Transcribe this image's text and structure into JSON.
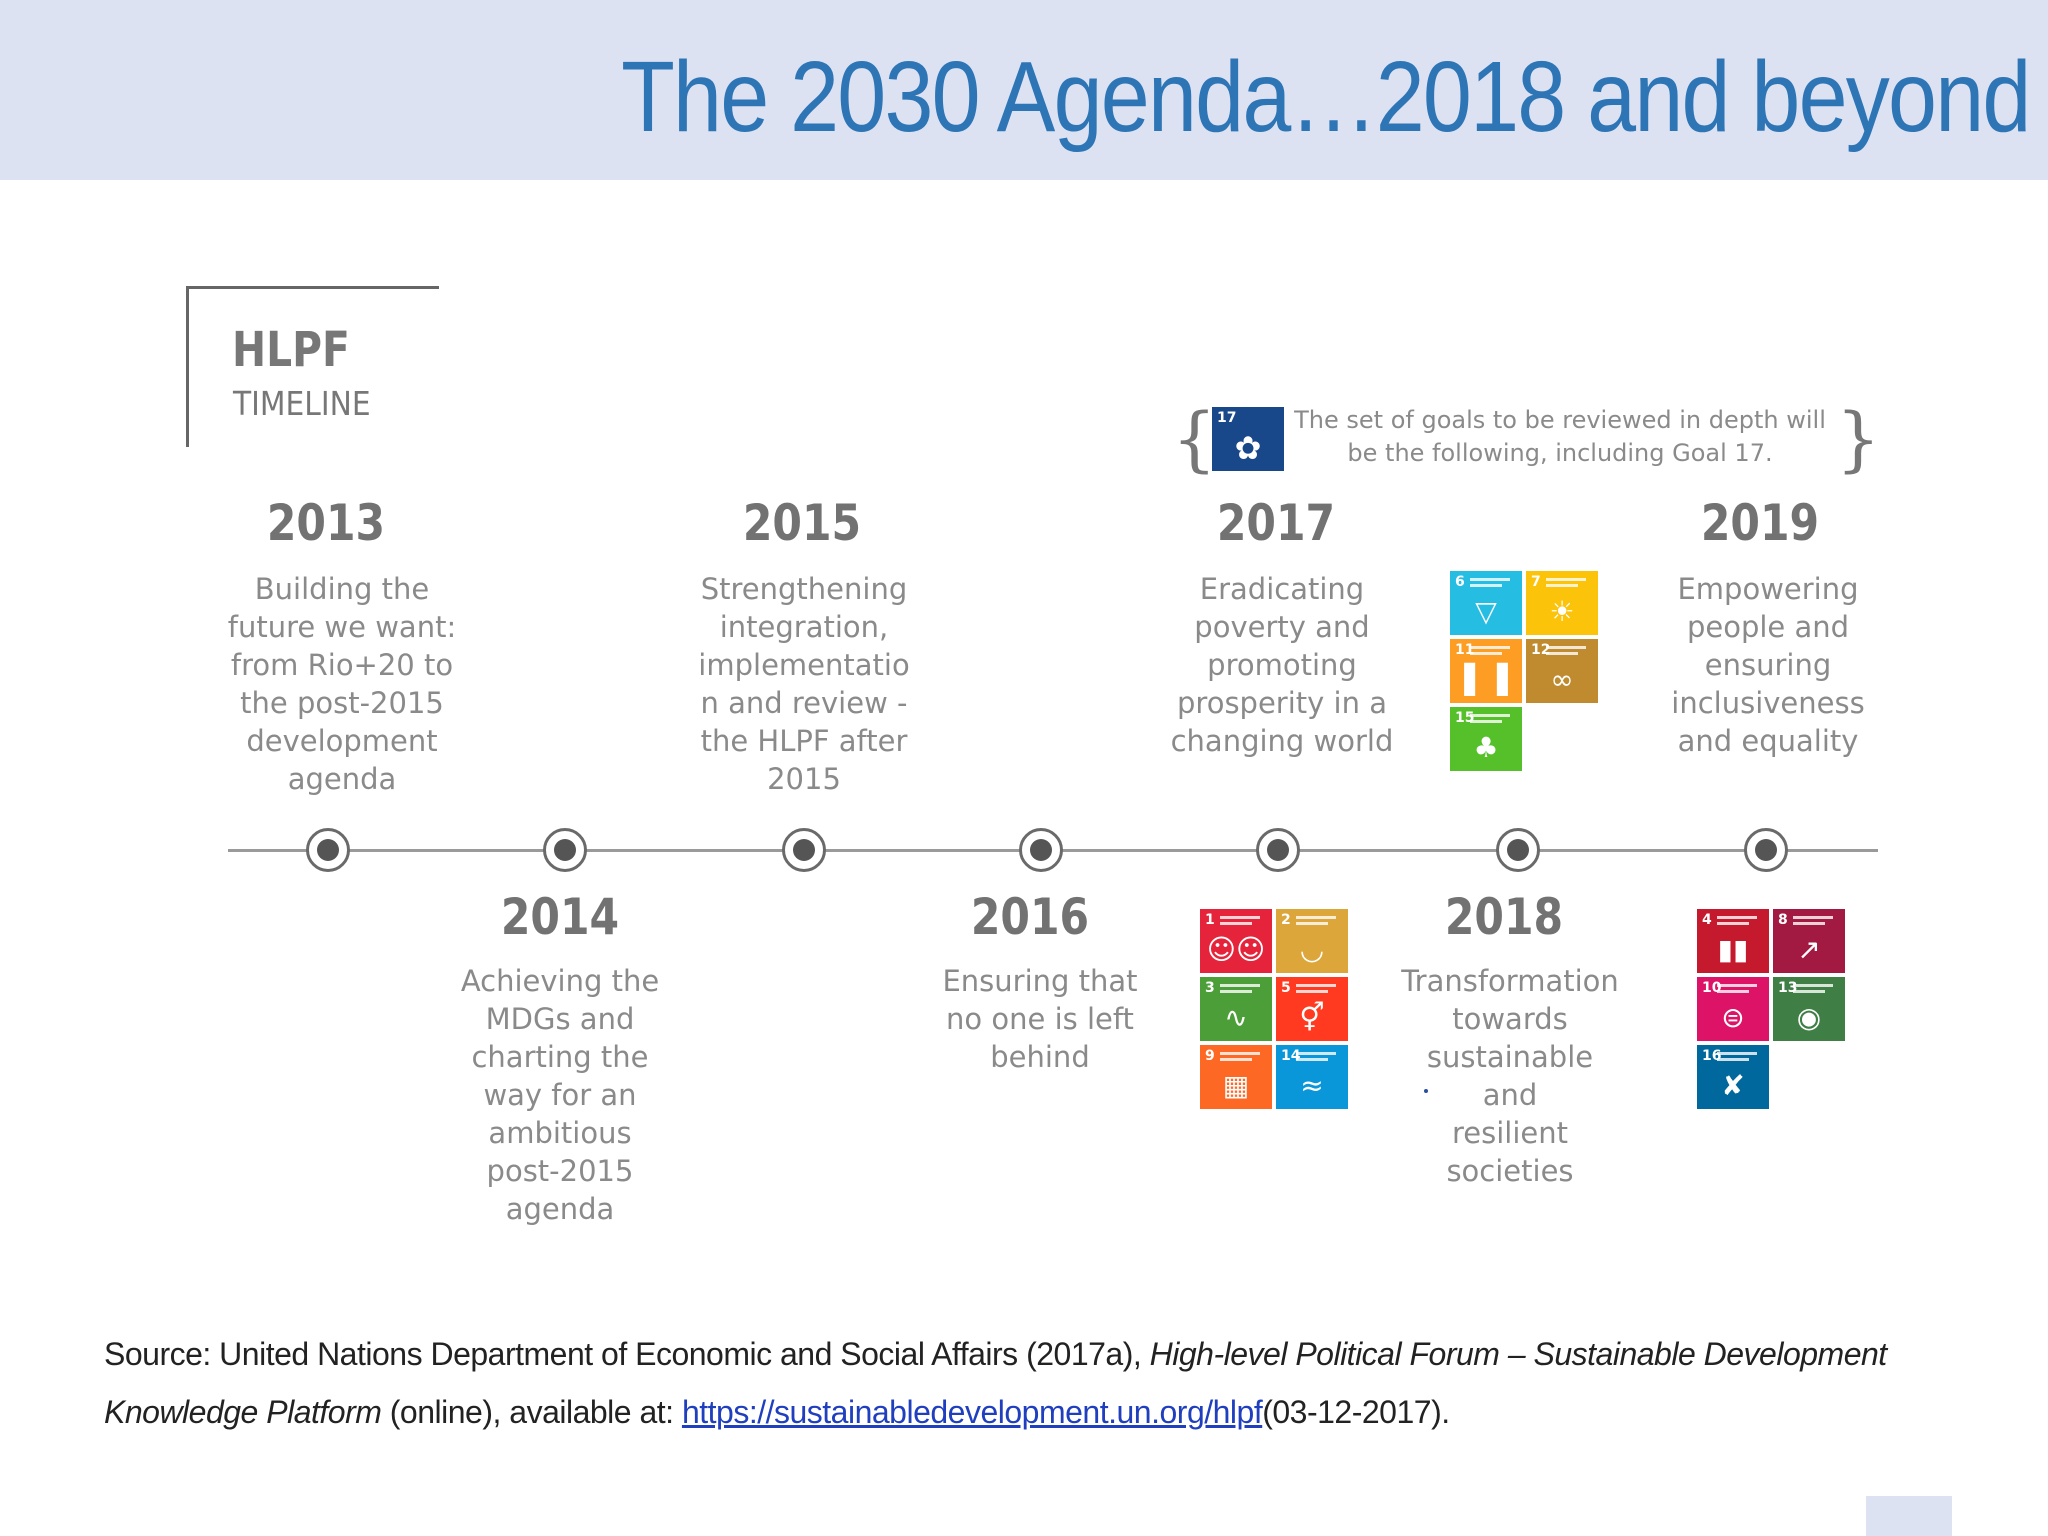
{
  "title": "The 2030 Agenda…2018 and beyond",
  "hlpf": {
    "title": "HLPF",
    "subtitle": "TIMELINE"
  },
  "note": {
    "text": "The set of goals to be reviewed in depth will be the following, including Goal 17."
  },
  "milestones": [
    {
      "year": "2013",
      "text": "Building the\nfuture we want:\nfrom Rio+20 to\nthe post-2015\ndevelopment\nagenda"
    },
    {
      "year": "2014",
      "text": "Achieving the\nMDGs and\ncharting the\nway for an\nambitious\npost-2015\nagenda"
    },
    {
      "year": "2015",
      "text": "Strengthening\nintegration,\nimplementatio\nn and review -\nthe HLPF after\n2015"
    },
    {
      "year": "2016",
      "text": "Ensuring that\nno one is left\nbehind"
    },
    {
      "year": "2017",
      "text": "Eradicating\npoverty and\npromoting\nprosperity in a\nchanging world"
    },
    {
      "year": "2018",
      "text": "Transformation\ntowards\nsustainable and\nresilient\nsocieties"
    },
    {
      "year": "2019",
      "text": "Empowering\npeople and\nensuring\ninclusiveness\nand equality"
    }
  ],
  "goal_tiles": {
    "goal17": {
      "num": "17",
      "color": "#19488a"
    },
    "set2017": [
      {
        "num": "1",
        "color": "#e5243b",
        "icon": "people-icon"
      },
      {
        "num": "2",
        "color": "#dda63a",
        "icon": "bowl-icon"
      },
      {
        "num": "3",
        "color": "#4c9f38",
        "icon": "heartbeat-icon"
      },
      {
        "num": "5",
        "color": "#ff3a21",
        "icon": "gender-icon"
      },
      {
        "num": "9",
        "color": "#fd6925",
        "icon": "cubes-icon"
      },
      {
        "num": "14",
        "color": "#0a97d9",
        "icon": "fish-icon"
      }
    ],
    "set2018": [
      {
        "num": "6",
        "color": "#26bde2",
        "icon": "water-icon"
      },
      {
        "num": "7",
        "color": "#fcc30b",
        "icon": "sun-icon"
      },
      {
        "num": "11",
        "color": "#fd9d24",
        "icon": "city-icon"
      },
      {
        "num": "12",
        "color": "#bf8b2e",
        "icon": "infinity-icon"
      },
      {
        "num": "15",
        "color": "#56c02b",
        "icon": "tree-icon"
      }
    ],
    "set2019": [
      {
        "num": "4",
        "color": "#c5192d",
        "icon": "book-icon"
      },
      {
        "num": "8",
        "color": "#a21942",
        "icon": "growth-icon"
      },
      {
        "num": "10",
        "color": "#dd1367",
        "icon": "equal-icon"
      },
      {
        "num": "13",
        "color": "#3f7e44",
        "icon": "eye-icon"
      },
      {
        "num": "16",
        "color": "#00689d",
        "icon": "dove-icon"
      }
    ]
  },
  "source": {
    "prefix": "Source: United Nations Department of Economic and Social Affairs (2017a), ",
    "italic": "High-level Political Forum – Sustainable Development Knowledge Platform",
    "middle": " (online), available at: ",
    "link": "https://sustainabledevelopment.un.org/hlpf",
    "suffix": "(03-12-2017)."
  }
}
